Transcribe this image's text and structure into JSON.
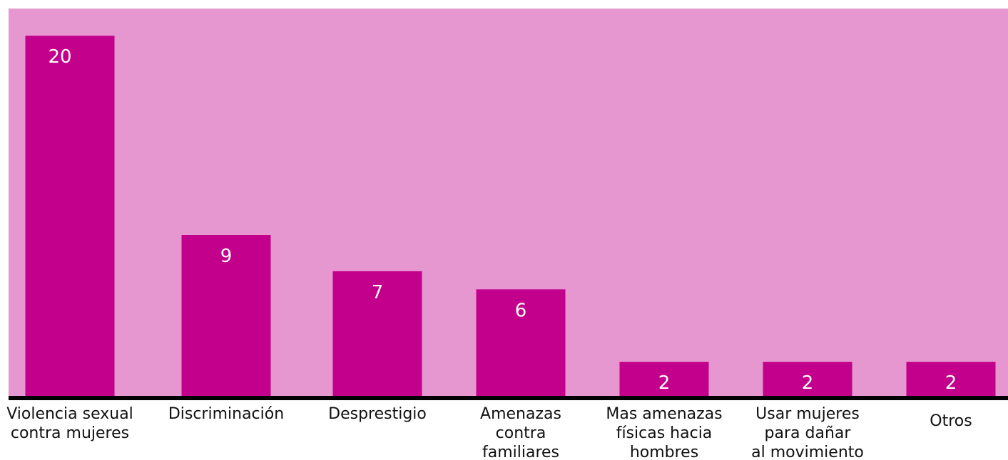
{
  "chart_data": {
    "type": "bar",
    "categories": [
      [
        "Violencia sexual",
        "contra mujeres"
      ],
      [
        "Discriminación"
      ],
      [
        "Desprestigio"
      ],
      [
        "Amenazas",
        "contra",
        "familiares"
      ],
      [
        "Mas amenazas",
        "físicas hacia",
        "hombres"
      ],
      [
        "Usar mujeres",
        "para dañar",
        "al movimiento"
      ],
      [
        "Otros"
      ]
    ],
    "values": [
      20,
      9,
      7,
      6,
      2,
      2,
      2
    ],
    "data_labels": [
      "20",
      "9",
      "7",
      "6",
      "2",
      "2",
      "2"
    ],
    "title": "",
    "xlabel": "",
    "ylabel": "",
    "ylim": [
      0,
      21.5
    ],
    "grid": false,
    "legend": "none",
    "colors": {
      "background": "#e697d0",
      "bar": "#c3008c",
      "axis": "#000000",
      "data_label": "#ffffff",
      "category_label": "#111111"
    }
  }
}
